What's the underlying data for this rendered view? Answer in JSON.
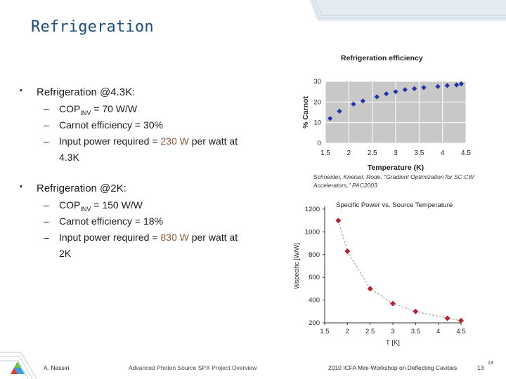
{
  "slide": {
    "title": "Refrigeration",
    "bullets": [
      {
        "label": "Refrigeration @4.3K:",
        "items": [
          {
            "pre": "COP",
            "sub": "INV",
            "post": " = 70 W/W"
          },
          {
            "text": "Carnot efficiency = 30%"
          },
          {
            "pre": "Input power required = ",
            "hl": "230 W",
            "post": " per watt at",
            "line2": "4.3K"
          }
        ]
      },
      {
        "label": "Refrigeration @2K:",
        "items": [
          {
            "pre": "COP",
            "sub": "INV",
            "post": " = 150 W/W"
          },
          {
            "text": "Carnot efficiency = 18%"
          },
          {
            "pre": "Input power required = ",
            "hl": "830 W",
            "post": " per watt at",
            "line2": "2K"
          }
        ]
      }
    ],
    "citation": "Schneider, Kneisel, Rode, \"Gradient Optimization for SC CW Accelerators,\" PAC2003"
  },
  "footer": {
    "author": "A. Nassiri",
    "project": "Advanced Photon Source SPX Project Overview",
    "workshop": "2010 ICFA Mini-Workshop on Deflecting Cavities",
    "page": "13",
    "page_superscript": "13"
  },
  "chart_data": [
    {
      "type": "scatter",
      "title": "Refrigeration efficiency",
      "xlabel": "Temperature (K)",
      "ylabel": "% Carnot",
      "xlim": [
        1.5,
        4.5
      ],
      "ylim": [
        0,
        30
      ],
      "xticks": [
        "1.5",
        "2",
        "2.5",
        "3",
        "3.5",
        "4",
        "4.5"
      ],
      "yticks": [
        "0",
        "10",
        "20",
        "30"
      ],
      "grid": true,
      "background": "#c8c8c8",
      "marker_color": "#2233aa",
      "x": [
        1.6,
        1.8,
        2.1,
        2.3,
        2.6,
        2.8,
        3.0,
        3.2,
        3.4,
        3.6,
        3.9,
        4.1,
        4.3,
        4.4
      ],
      "y": [
        12,
        15.5,
        19,
        20.5,
        22.5,
        24,
        25,
        26,
        26.5,
        27,
        27.5,
        28,
        28.3,
        28.8
      ]
    },
    {
      "type": "scatter",
      "title": "Specific Power vs. Source Temperature",
      "xlabel": "T [K]",
      "ylabel": "Wspecific [W/W]",
      "xlim": [
        1.5,
        4.5
      ],
      "ylim": [
        200,
        1200
      ],
      "xticks": [
        "1.5",
        "2",
        "2.5",
        "3",
        "3.5",
        "4",
        "4.5"
      ],
      "yticks": [
        "200",
        "400",
        "600",
        "800",
        "1000",
        "1200"
      ],
      "grid": false,
      "trend": "dashed-fit",
      "marker_color": "#b22234",
      "x": [
        1.8,
        2.0,
        2.5,
        3.0,
        3.5,
        4.2,
        4.5
      ],
      "y": [
        1100,
        830,
        500,
        370,
        300,
        240,
        220
      ]
    }
  ]
}
